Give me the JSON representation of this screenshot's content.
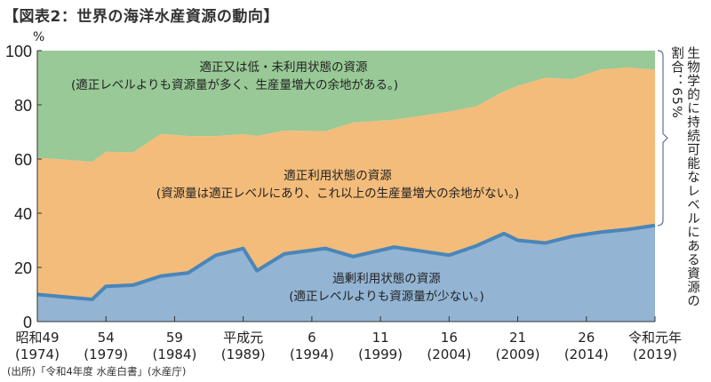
{
  "title": "【図表2：世界の海洋水産資源の動向】",
  "source": "(出所)「令和4年度 水産白書」(水産庁)",
  "chart_data": {
    "type": "area",
    "stacked": true,
    "ylabel": "%",
    "ylim": [
      0,
      100
    ],
    "yticks": [
      0,
      20,
      40,
      60,
      80,
      100
    ],
    "xlim": [
      1974,
      2019
    ],
    "xticks": [
      {
        "year": 1974,
        "line1": "昭和49",
        "line2": "(1974)"
      },
      {
        "year": 1979,
        "line1": "54",
        "line2": "(1979)"
      },
      {
        "year": 1984,
        "line1": "59",
        "line2": "(1984)"
      },
      {
        "year": 1989,
        "line1": "平成元",
        "line2": "(1989)"
      },
      {
        "year": 1994,
        "line1": "6",
        "line2": "(1994)"
      },
      {
        "year": 1999,
        "line1": "11",
        "line2": "(1999)"
      },
      {
        "year": 2004,
        "line1": "16",
        "line2": "(2004)"
      },
      {
        "year": 2009,
        "line1": "21",
        "line2": "(2009)"
      },
      {
        "year": 2014,
        "line1": "26",
        "line2": "(2014)"
      },
      {
        "year": 2019,
        "line1": "令和元年",
        "line2": "(2019)"
      }
    ],
    "x": [
      1974,
      1978,
      1979,
      1981,
      1983,
      1985,
      1987,
      1989,
      1990,
      1992,
      1995,
      1997,
      2000,
      2002,
      2004,
      2006,
      2008,
      2009,
      2011,
      2013,
      2015,
      2017,
      2019
    ],
    "series": [
      {
        "name": "過剰利用状態の資源",
        "note": "(適正レベルよりも資源量が少ない。)",
        "color": "#93b4d3",
        "line_color": "#4a86b8",
        "values": [
          10,
          8.2,
          13,
          13.5,
          16.8,
          18,
          24.5,
          27,
          18.8,
          25,
          27,
          24,
          27.5,
          26,
          24.5,
          28,
          32.5,
          30,
          29,
          31.5,
          33,
          34,
          35.5
        ]
      },
      {
        "name": "適正利用状態の資源",
        "note": "(資源量は適正レベルにあり、これ以上の生産量増大の余地がない。)",
        "color": "#f3bc7a",
        "values": [
          50.5,
          50.8,
          49.7,
          49,
          52.5,
          50.5,
          44,
          42.2,
          49.7,
          45.5,
          43.3,
          49.5,
          47,
          50,
          53,
          51.5,
          52.5,
          57,
          61,
          58,
          60,
          59.8,
          57.5
        ]
      },
      {
        "name": "適正又は低・未利用状態の資源",
        "note": "(適正レベルよりも資源量が多く、生産量増大の余地がある。)",
        "color": "#98c996",
        "values": [
          39.5,
          41,
          37.3,
          37.5,
          30.7,
          31.5,
          31.5,
          30.8,
          31.5,
          29.5,
          29.7,
          26.5,
          25.5,
          24,
          22.5,
          20.5,
          15,
          13,
          10,
          10.5,
          7,
          6.2,
          7
        ]
      }
    ],
    "annotation": "生物学的に持続可能なレベルにある資源の割合：65%"
  }
}
